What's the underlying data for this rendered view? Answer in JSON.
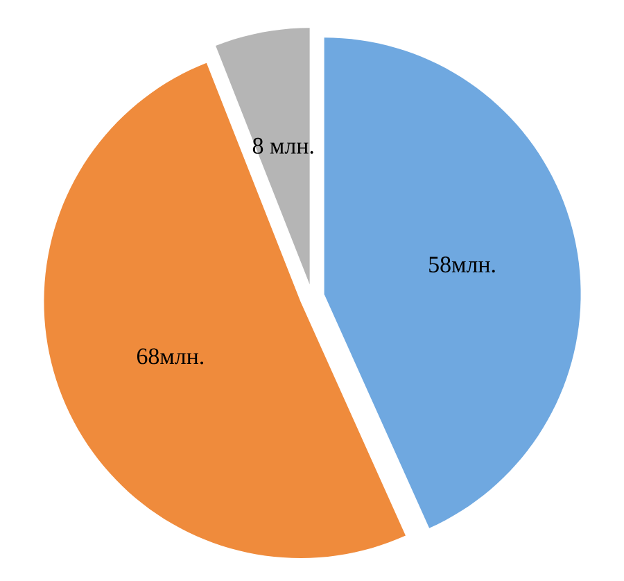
{
  "chart_data": {
    "type": "pie",
    "categories": [
      null,
      null,
      null
    ],
    "values": [
      58,
      68,
      8
    ],
    "value_labels": [
      "58млн.",
      "68млн.",
      "8 млн."
    ],
    "colors": [
      "#6fa8e0",
      "#ef8b3c",
      "#b5b5b5"
    ]
  }
}
